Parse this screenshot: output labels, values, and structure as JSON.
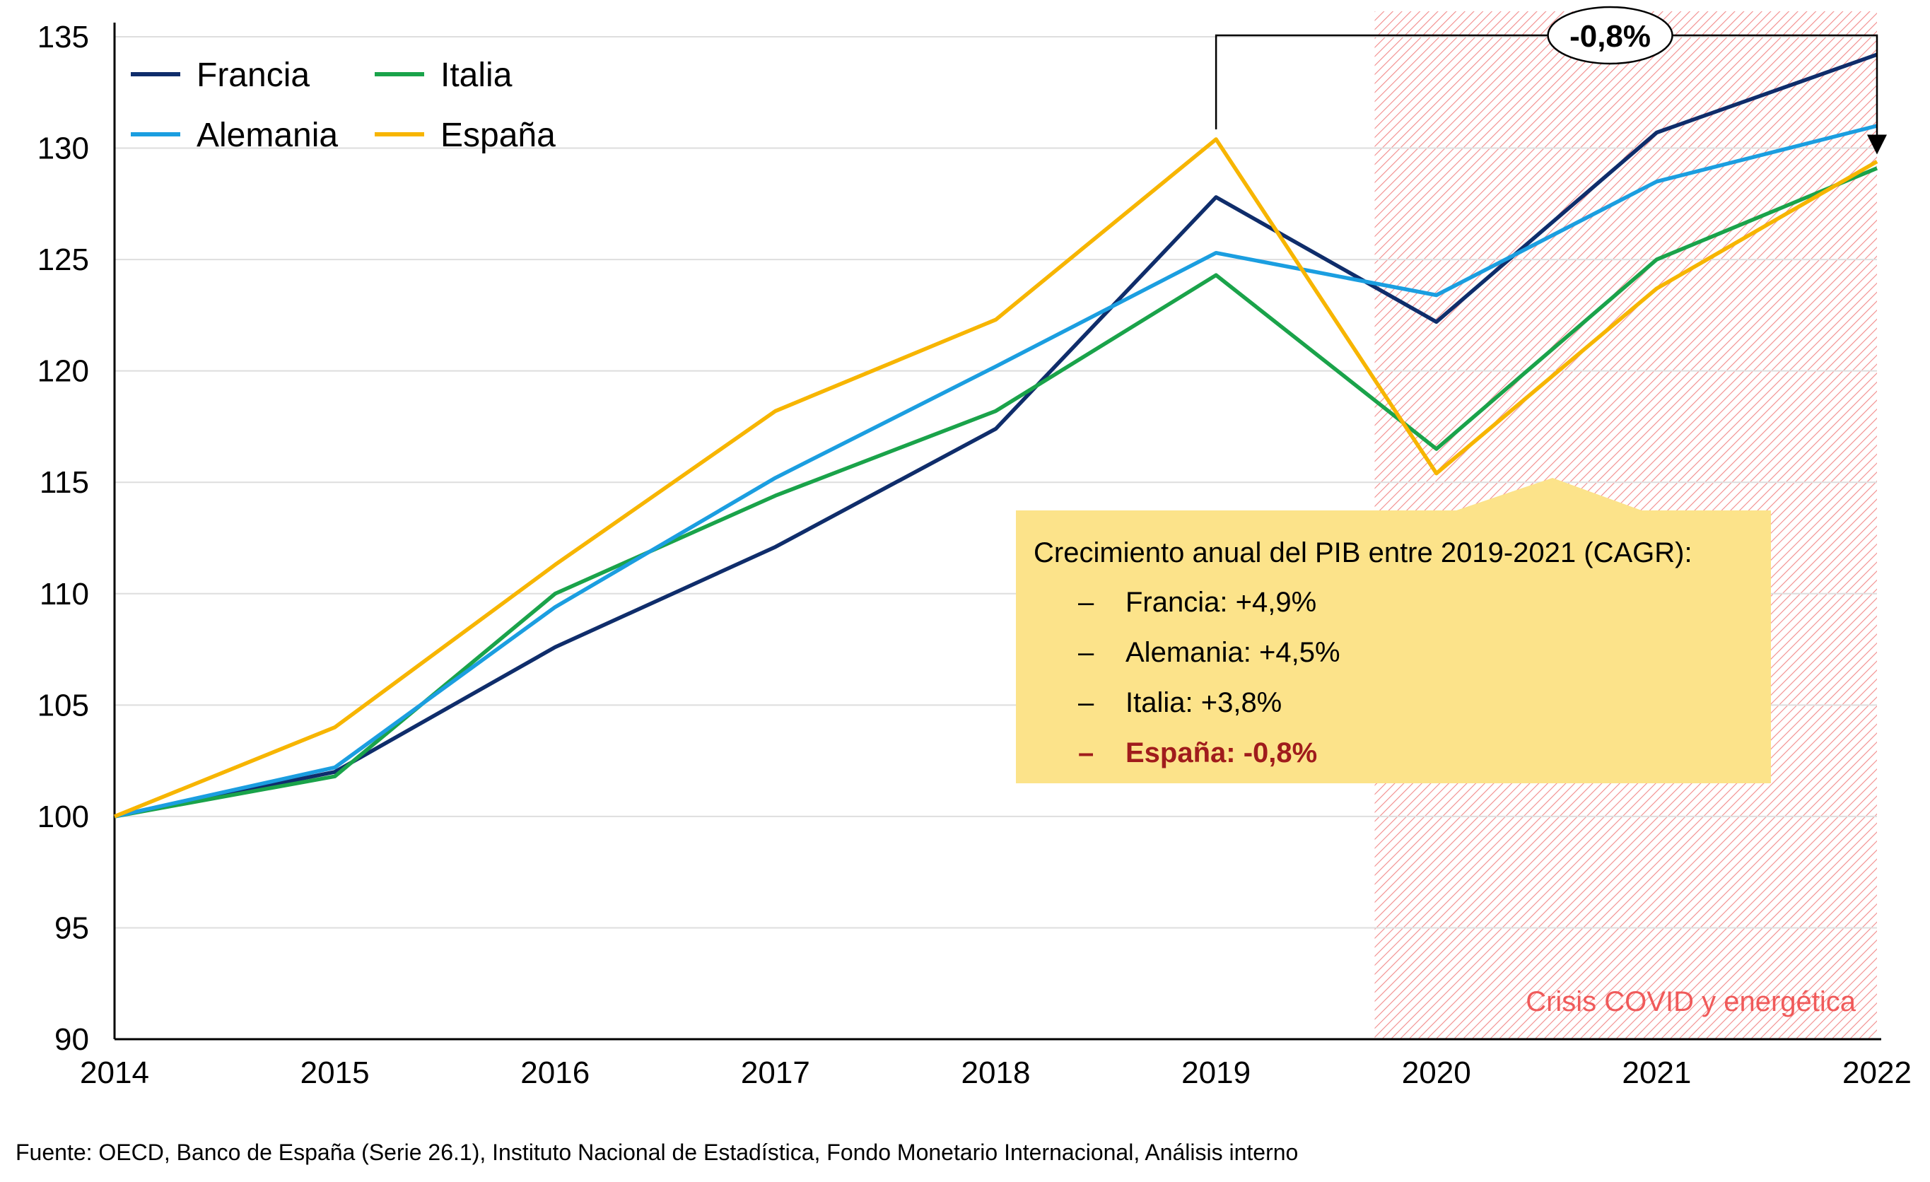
{
  "chart_data": {
    "type": "line",
    "x": [
      "2014",
      "2015",
      "2016",
      "2017",
      "2018",
      "2019",
      "2020",
      "2021",
      "2022"
    ],
    "ylim": [
      90,
      135
    ],
    "yticks": [
      90,
      95,
      100,
      105,
      110,
      115,
      120,
      125,
      130,
      135
    ],
    "grid": "horizontal",
    "legend_position": "top-left",
    "series": [
      {
        "name": "Francia",
        "color": "#0f2d6b",
        "values": [
          100,
          102.0,
          107.6,
          112.1,
          117.4,
          127.8,
          122.2,
          130.7,
          134.2
        ]
      },
      {
        "name": "Italia",
        "color": "#1aa34a",
        "values": [
          100,
          101.8,
          110.0,
          114.4,
          118.2,
          124.3,
          116.5,
          125.0,
          129.1
        ]
      },
      {
        "name": "Alemania",
        "color": "#1b9ee0",
        "values": [
          100,
          102.2,
          109.4,
          115.2,
          120.2,
          125.3,
          123.4,
          128.5,
          131.0
        ]
      },
      {
        "name": "España",
        "color": "#f7b500",
        "values": [
          100,
          104.0,
          111.3,
          118.2,
          122.3,
          130.4,
          115.4,
          123.7,
          129.4
        ]
      }
    ],
    "shaded_region": {
      "from": "2019",
      "to": "2022",
      "label": "Crisis COVID y energética",
      "color": "#f05a5a"
    },
    "bracket": {
      "from": "2019",
      "to": "2022",
      "label": "-0,8%"
    },
    "annotation_box": {
      "title": "Crecimiento anual del PIB entre 2019-2021 (CAGR):",
      "bullet": "–",
      "items": [
        {
          "text": "Francia: +4,9%",
          "highlight": false
        },
        {
          "text": "Alemania: +4,5%",
          "highlight": false
        },
        {
          "text": "Italia: +3,8%",
          "highlight": false
        },
        {
          "text": "España: -0,8%",
          "highlight": true
        }
      ],
      "color": "#fce38a"
    }
  },
  "source_text": "Fuente: OECD, Banco de España (Serie 26.1), Instituto Nacional de Estadística, Fondo Monetario Internacional, Análisis interno"
}
